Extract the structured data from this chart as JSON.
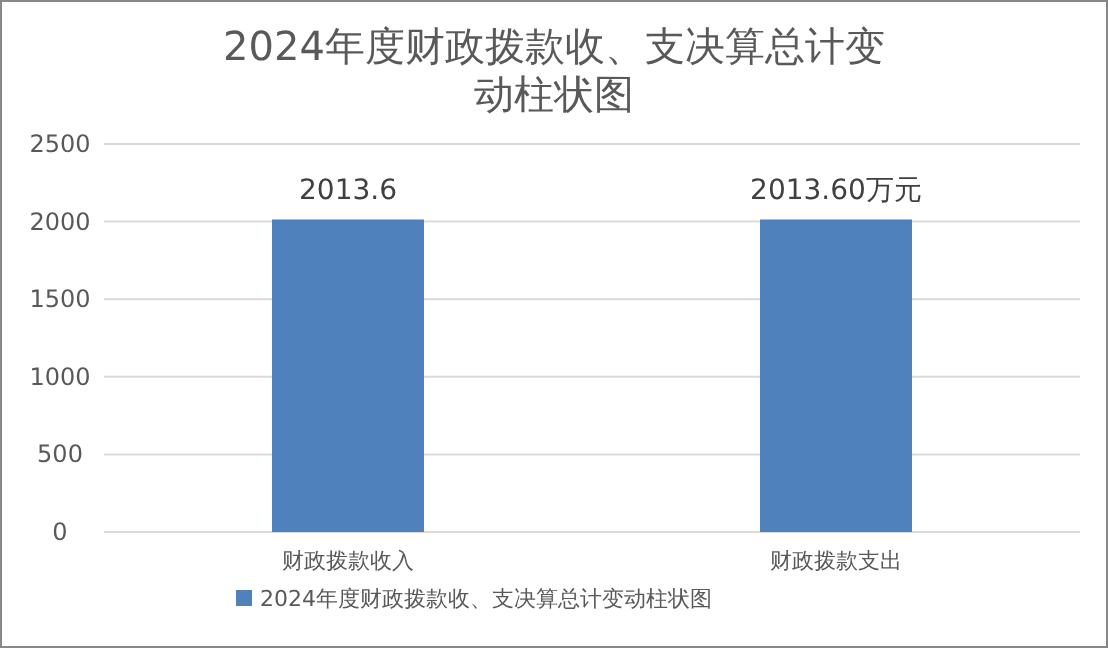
{
  "chart_data": {
    "type": "bar",
    "title": "2024年度财政拨款收、支决算总计变动柱状图",
    "categories": [
      "财政拨款收入",
      "财政拨款支出"
    ],
    "series": [
      {
        "name": "2024年度财政拨款收、支决算总计变动柱状图",
        "color": "#4f81bd",
        "values": [
          2013.6,
          2013.6
        ],
        "value_labels": [
          "2013.6",
          "2013.60万元"
        ]
      }
    ],
    "ylim": [
      0,
      2500
    ],
    "yticks": [
      0,
      500,
      1000,
      1500,
      2000,
      2500
    ],
    "grid": "y",
    "legend": "bottom"
  }
}
